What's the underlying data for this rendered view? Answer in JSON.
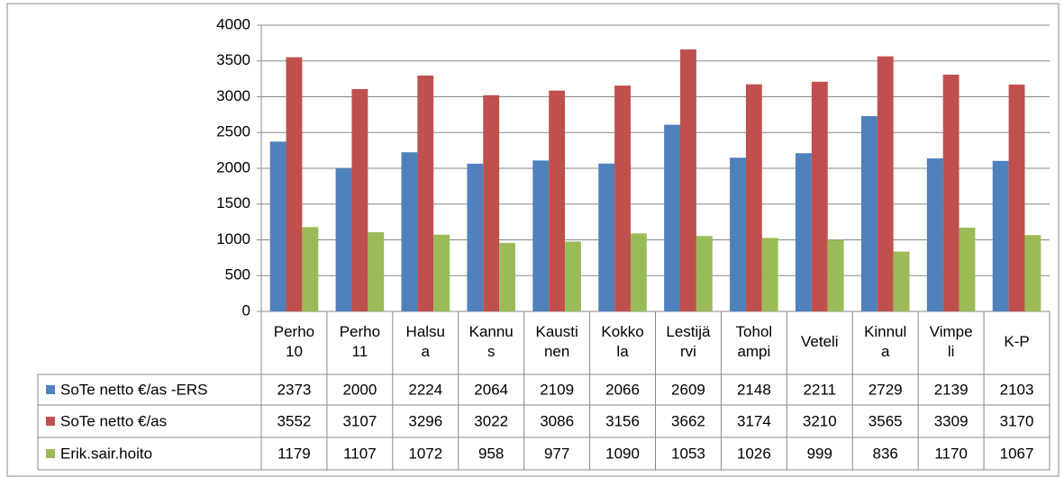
{
  "chart_data": {
    "type": "bar",
    "categories": [
      "Perho\n10",
      "Perho\n11",
      "Halsu\na",
      "Kannu\ns",
      "Kausti\nnen",
      "Kokko\nla",
      "Lestijä\nrvi",
      "Tohol\nampi",
      "Veteli",
      "Kinnul\na",
      "Vimpe\nli",
      "K-P"
    ],
    "series": [
      {
        "name": "SoTe netto €/as -ERS",
        "color": "#4f81bd",
        "values": [
          2373,
          2000,
          2224,
          2064,
          2109,
          2066,
          2609,
          2148,
          2211,
          2729,
          2139,
          2103
        ]
      },
      {
        "name": "SoTe netto €/as",
        "color": "#c0504d",
        "values": [
          3552,
          3107,
          3296,
          3022,
          3086,
          3156,
          3662,
          3174,
          3210,
          3565,
          3309,
          3170
        ]
      },
      {
        "name": "Erik.sair.hoito",
        "color": "#9bbb59",
        "values": [
          1179,
          1107,
          1072,
          958,
          977,
          1090,
          1053,
          1026,
          999,
          836,
          1170,
          1067
        ]
      }
    ],
    "ylim": [
      0,
      4000
    ],
    "yticks": [
      0,
      500,
      1000,
      1500,
      2000,
      2500,
      3000,
      3500,
      4000
    ],
    "grid": true
  }
}
